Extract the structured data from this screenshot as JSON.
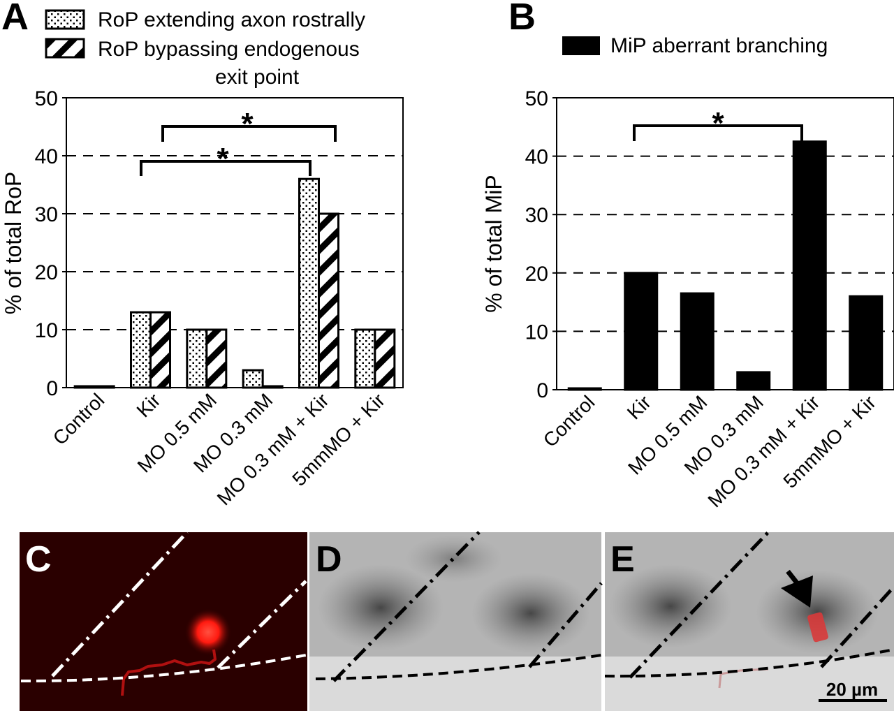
{
  "panels": {
    "A": "A",
    "B": "B",
    "C": "C",
    "D": "D",
    "E": "E"
  },
  "chart_data": [
    {
      "panel": "A",
      "type": "bar",
      "title": "",
      "xlabel": "",
      "ylabel": "% of total RoP",
      "ylim": [
        0,
        50
      ],
      "yticks": [
        0,
        10,
        20,
        30,
        40,
        50
      ],
      "grid": "dashed horizontal at 10, 20, 30, 40",
      "legend_position": "top",
      "categories": [
        "Control",
        "Kir",
        "MO 0.5 mM",
        "MO 0.3 mM",
        "MO 0.3 mM + Kir",
        "5mmMO + Kir"
      ],
      "series": [
        {
          "name": "RoP extending axon rostrally",
          "pattern": "dotted",
          "values": [
            0,
            13,
            10,
            3,
            36,
            10
          ]
        },
        {
          "name": "RoP bypassing endogenous exit point",
          "pattern": "diagonal-stripes",
          "values": [
            0,
            13,
            10,
            0,
            30,
            10
          ]
        }
      ],
      "annotations": [
        {
          "label": "*",
          "from": "Kir",
          "to": "MO 0.3 mM + Kir",
          "series": "RoP bypassing endogenous exit point"
        },
        {
          "label": "*",
          "from": "Kir",
          "to": "MO 0.3 mM + Kir",
          "series": "RoP extending axon rostrally"
        }
      ]
    },
    {
      "panel": "B",
      "type": "bar",
      "title": "",
      "xlabel": "",
      "ylabel": "% of total MiP",
      "ylim": [
        0,
        50
      ],
      "yticks": [
        0,
        10,
        20,
        30,
        40,
        50
      ],
      "grid": "dashed horizontal at 10, 20, 30, 40",
      "legend_position": "top",
      "categories": [
        "Control",
        "Kir",
        "MO 0.5 mM",
        "MO 0.3 mM",
        "MO 0.3 mM + Kir",
        "5mmMO + Kir"
      ],
      "series": [
        {
          "name": "MiP aberrant branching",
          "pattern": "solid",
          "values": [
            0,
            20,
            16.5,
            3,
            42.5,
            16
          ]
        }
      ],
      "annotations": [
        {
          "label": "*",
          "from": "Kir",
          "to": "MO 0.3 mM + Kir"
        }
      ]
    }
  ],
  "images": {
    "scale_bar": "20 µm",
    "colors": {
      "fluorescent_background": "#2a0000",
      "fluorescent_signal": "#ff2a1a",
      "dashed_overlay_light": "#ffffff",
      "dashed_overlay_dark": "#000000",
      "grayscale_tissue": "#a8a8a8"
    },
    "icons": {
      "arrow": "black-arrow-icon"
    }
  }
}
